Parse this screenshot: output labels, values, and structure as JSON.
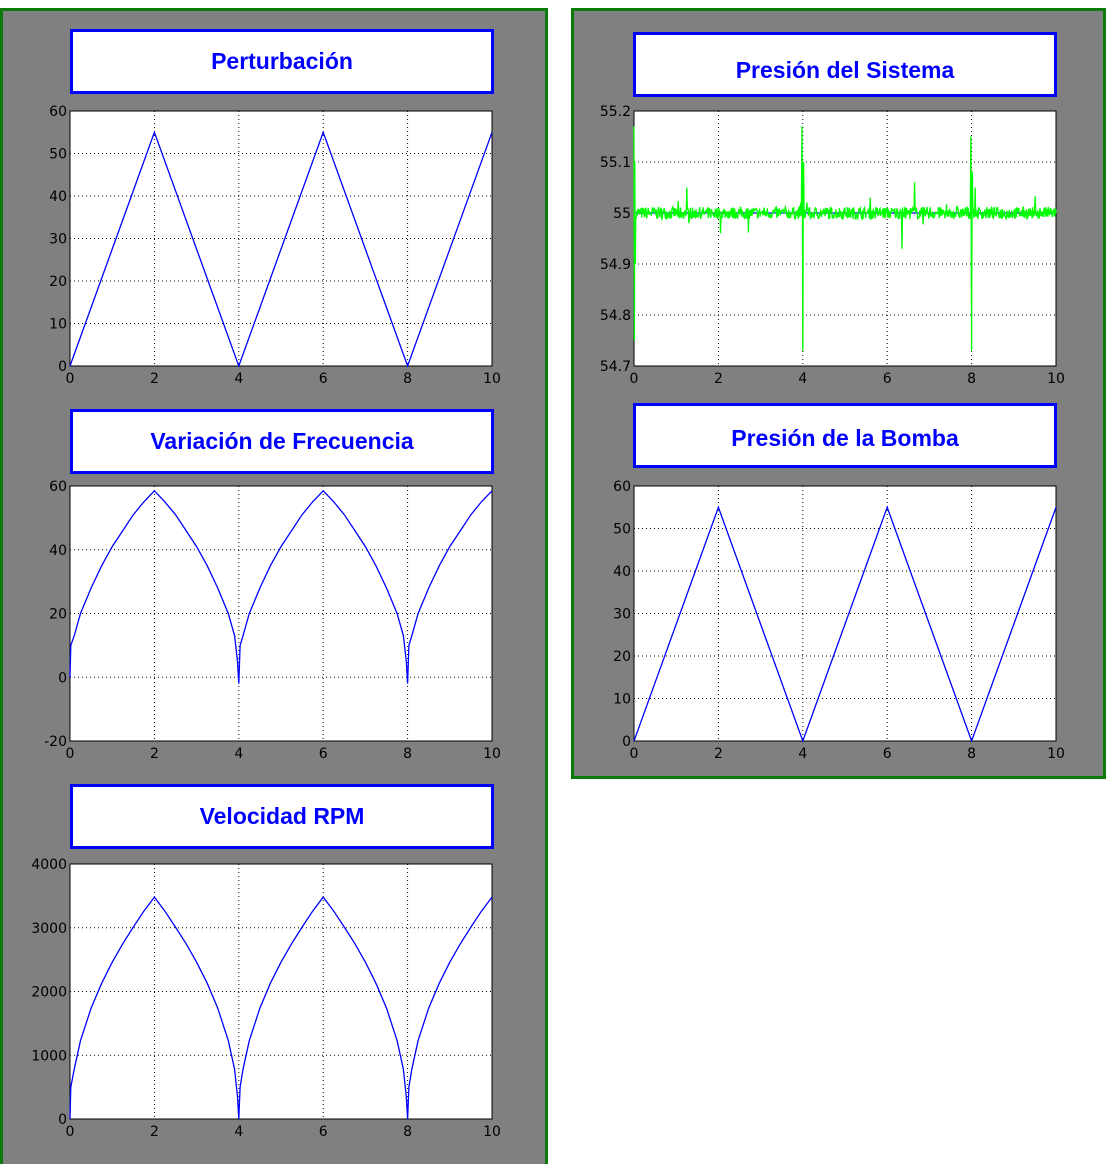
{
  "colors": {
    "panel_bg": "#808080",
    "panel_border": "#0b7a0b",
    "title_color": "#0000ff",
    "line_blue": "#0000ff",
    "line_green": "#00ff00"
  },
  "chart_data": [
    {
      "id": "perturbacion",
      "type": "line",
      "title": "Perturbación",
      "xlim": [
        0,
        10
      ],
      "ylim": [
        0,
        60
      ],
      "xticks": [
        0,
        2,
        4,
        6,
        8,
        10
      ],
      "yticks": [
        0,
        10,
        20,
        30,
        40,
        50,
        60
      ],
      "grid": true,
      "series": [
        {
          "color": "#0000ff",
          "x": [
            0,
            2,
            4,
            6,
            8,
            10
          ],
          "y": [
            0,
            55,
            0,
            55,
            0,
            55
          ]
        }
      ]
    },
    {
      "id": "variacion-frecuencia",
      "type": "line",
      "title": "Variación de Frecuencia",
      "xlim": [
        0,
        10
      ],
      "ylim": [
        -20,
        60
      ],
      "xticks": [
        0,
        2,
        4,
        6,
        8,
        10
      ],
      "yticks": [
        -20,
        0,
        20,
        40,
        60
      ],
      "grid": true,
      "series": [
        {
          "color": "#0000ff",
          "x": [
            0,
            0.02,
            0.1,
            0.25,
            0.5,
            0.75,
            1.0,
            1.25,
            1.5,
            1.75,
            2.0,
            2.25,
            2.5,
            2.75,
            3.0,
            3.25,
            3.5,
            3.75,
            3.9,
            3.97,
            4.0,
            4.03,
            4.1,
            4.25,
            4.5,
            4.75,
            5.0,
            5.25,
            5.5,
            5.75,
            6.0,
            6.25,
            6.5,
            6.75,
            7.0,
            7.25,
            7.5,
            7.75,
            7.9,
            7.97,
            8.0,
            8.03,
            8.1,
            8.25,
            8.5,
            8.75,
            9.0,
            9.25,
            9.5,
            9.75,
            10.0
          ],
          "y": [
            0,
            10,
            13,
            20,
            28,
            35,
            41,
            46,
            51,
            55,
            58.5,
            55,
            51,
            46,
            41,
            35,
            28,
            20,
            13,
            5,
            -2,
            10,
            13,
            20,
            28,
            35,
            41,
            46,
            51,
            55,
            58.5,
            55,
            51,
            46,
            41,
            35,
            28,
            20,
            13,
            5,
            -2,
            10,
            13,
            20,
            28,
            35,
            41,
            46,
            51,
            55,
            58.5
          ]
        }
      ]
    },
    {
      "id": "velocidad-rpm",
      "type": "line",
      "title": "Velocidad RPM",
      "xlim": [
        0,
        10
      ],
      "ylim": [
        0,
        4000
      ],
      "xticks": [
        0,
        2,
        4,
        6,
        8,
        10
      ],
      "yticks": [
        0,
        1000,
        2000,
        3000,
        4000
      ],
      "grid": true,
      "series": [
        {
          "color": "#0000ff",
          "x": [
            0,
            0.02,
            0.1,
            0.25,
            0.5,
            0.75,
            1.0,
            1.25,
            1.5,
            1.75,
            2.0,
            2.25,
            2.5,
            2.75,
            3.0,
            3.25,
            3.5,
            3.75,
            3.9,
            3.97,
            4.0,
            4.03,
            4.1,
            4.25,
            4.5,
            4.75,
            5.0,
            5.25,
            5.5,
            5.75,
            6.0,
            6.25,
            6.5,
            6.75,
            7.0,
            7.25,
            7.5,
            7.75,
            7.9,
            7.97,
            8.0,
            8.03,
            8.1,
            8.25,
            8.5,
            8.75,
            9.0,
            9.25,
            9.5,
            9.75,
            10.0
          ],
          "y": [
            0,
            500,
            780,
            1230,
            1740,
            2130,
            2460,
            2750,
            3010,
            3260,
            3480,
            3260,
            3010,
            2750,
            2460,
            2130,
            1740,
            1230,
            780,
            350,
            0,
            500,
            780,
            1230,
            1740,
            2130,
            2460,
            2750,
            3010,
            3260,
            3480,
            3260,
            3010,
            2750,
            2460,
            2130,
            1740,
            1230,
            780,
            350,
            0,
            500,
            780,
            1230,
            1740,
            2130,
            2460,
            2750,
            3010,
            3260,
            3480
          ]
        }
      ]
    },
    {
      "id": "presion-sistema",
      "type": "line",
      "title": "Presión del Sistema",
      "xlim": [
        0,
        10
      ],
      "ylim": [
        54.7,
        55.2
      ],
      "xticks": [
        0,
        2,
        4,
        6,
        8,
        10
      ],
      "yticks": [
        54.7,
        54.8,
        54.9,
        55,
        55.1,
        55.2
      ],
      "grid": true,
      "series": [
        {
          "color": "#0000ff",
          "x": [
            0,
            10
          ],
          "y": [
            55,
            55
          ]
        },
        {
          "color": "#00ff00",
          "noise_amplitude": 0.012,
          "x": [
            0,
            0.01,
            0.02,
            0.03,
            0.05,
            1.2,
            1.25,
            1.3,
            2.0,
            2.05,
            3.95,
            3.98,
            4.0,
            4.02,
            4.05,
            5.5,
            5.6,
            6.3,
            6.35,
            6.6,
            6.65,
            7.98,
            8.0,
            8.02,
            8.05,
            10.0
          ],
          "y": [
            55.17,
            54.75,
            55.1,
            54.9,
            54.99,
            55.0,
            55.05,
            54.98,
            55.0,
            54.96,
            55.02,
            55.17,
            54.73,
            55.1,
            54.99,
            55.0,
            55.03,
            55.0,
            54.93,
            55.01,
            55.06,
            55.15,
            54.73,
            55.08,
            54.99,
            55.0
          ]
        }
      ]
    },
    {
      "id": "presion-bomba",
      "type": "line",
      "title": "Presión de la Bomba",
      "xlim": [
        0,
        10
      ],
      "ylim": [
        0,
        60
      ],
      "xticks": [
        0,
        2,
        4,
        6,
        8,
        10
      ],
      "yticks": [
        0,
        10,
        20,
        30,
        40,
        50,
        60
      ],
      "grid": true,
      "series": [
        {
          "color": "#0000ff",
          "x": [
            0,
            2,
            4,
            6,
            8,
            10
          ],
          "y": [
            0,
            55,
            0,
            55,
            0,
            55
          ]
        }
      ]
    }
  ]
}
